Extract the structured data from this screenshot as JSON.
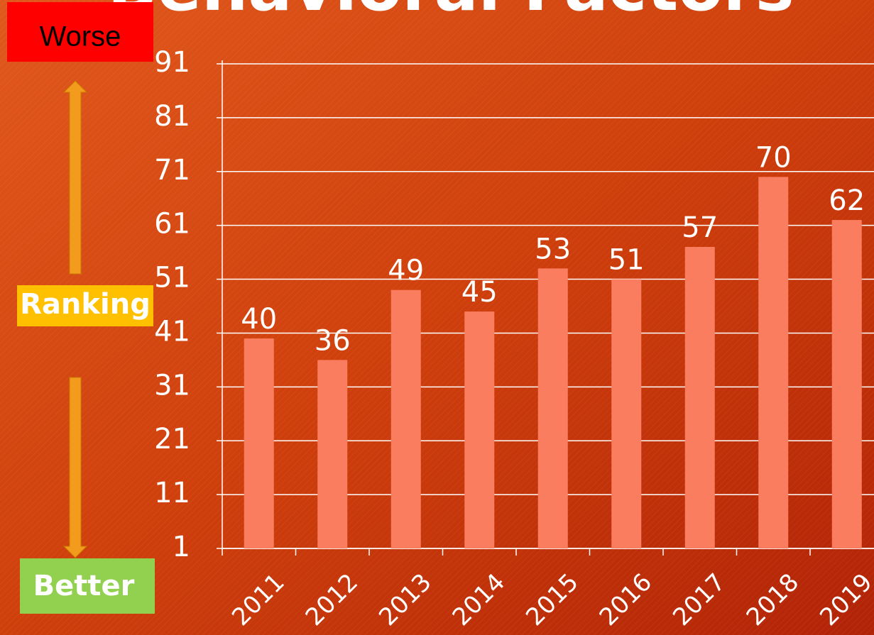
{
  "chart_data": {
    "type": "bar",
    "title": "Behavioral Factors",
    "categories": [
      "2011",
      "2012",
      "2013",
      "2014",
      "2015",
      "2016",
      "2017",
      "2018",
      "2019"
    ],
    "values": [
      40,
      36,
      49,
      45,
      53,
      51,
      57,
      70,
      62
    ],
    "color": "#fa7d5f",
    "ylim": [
      1,
      91
    ],
    "yticks": [
      1,
      11,
      21,
      31,
      41,
      51,
      61,
      71,
      81,
      91
    ],
    "grid": true,
    "annotations": {
      "top": "Worse",
      "middle": "Ranking",
      "bottom": "Better"
    }
  }
}
